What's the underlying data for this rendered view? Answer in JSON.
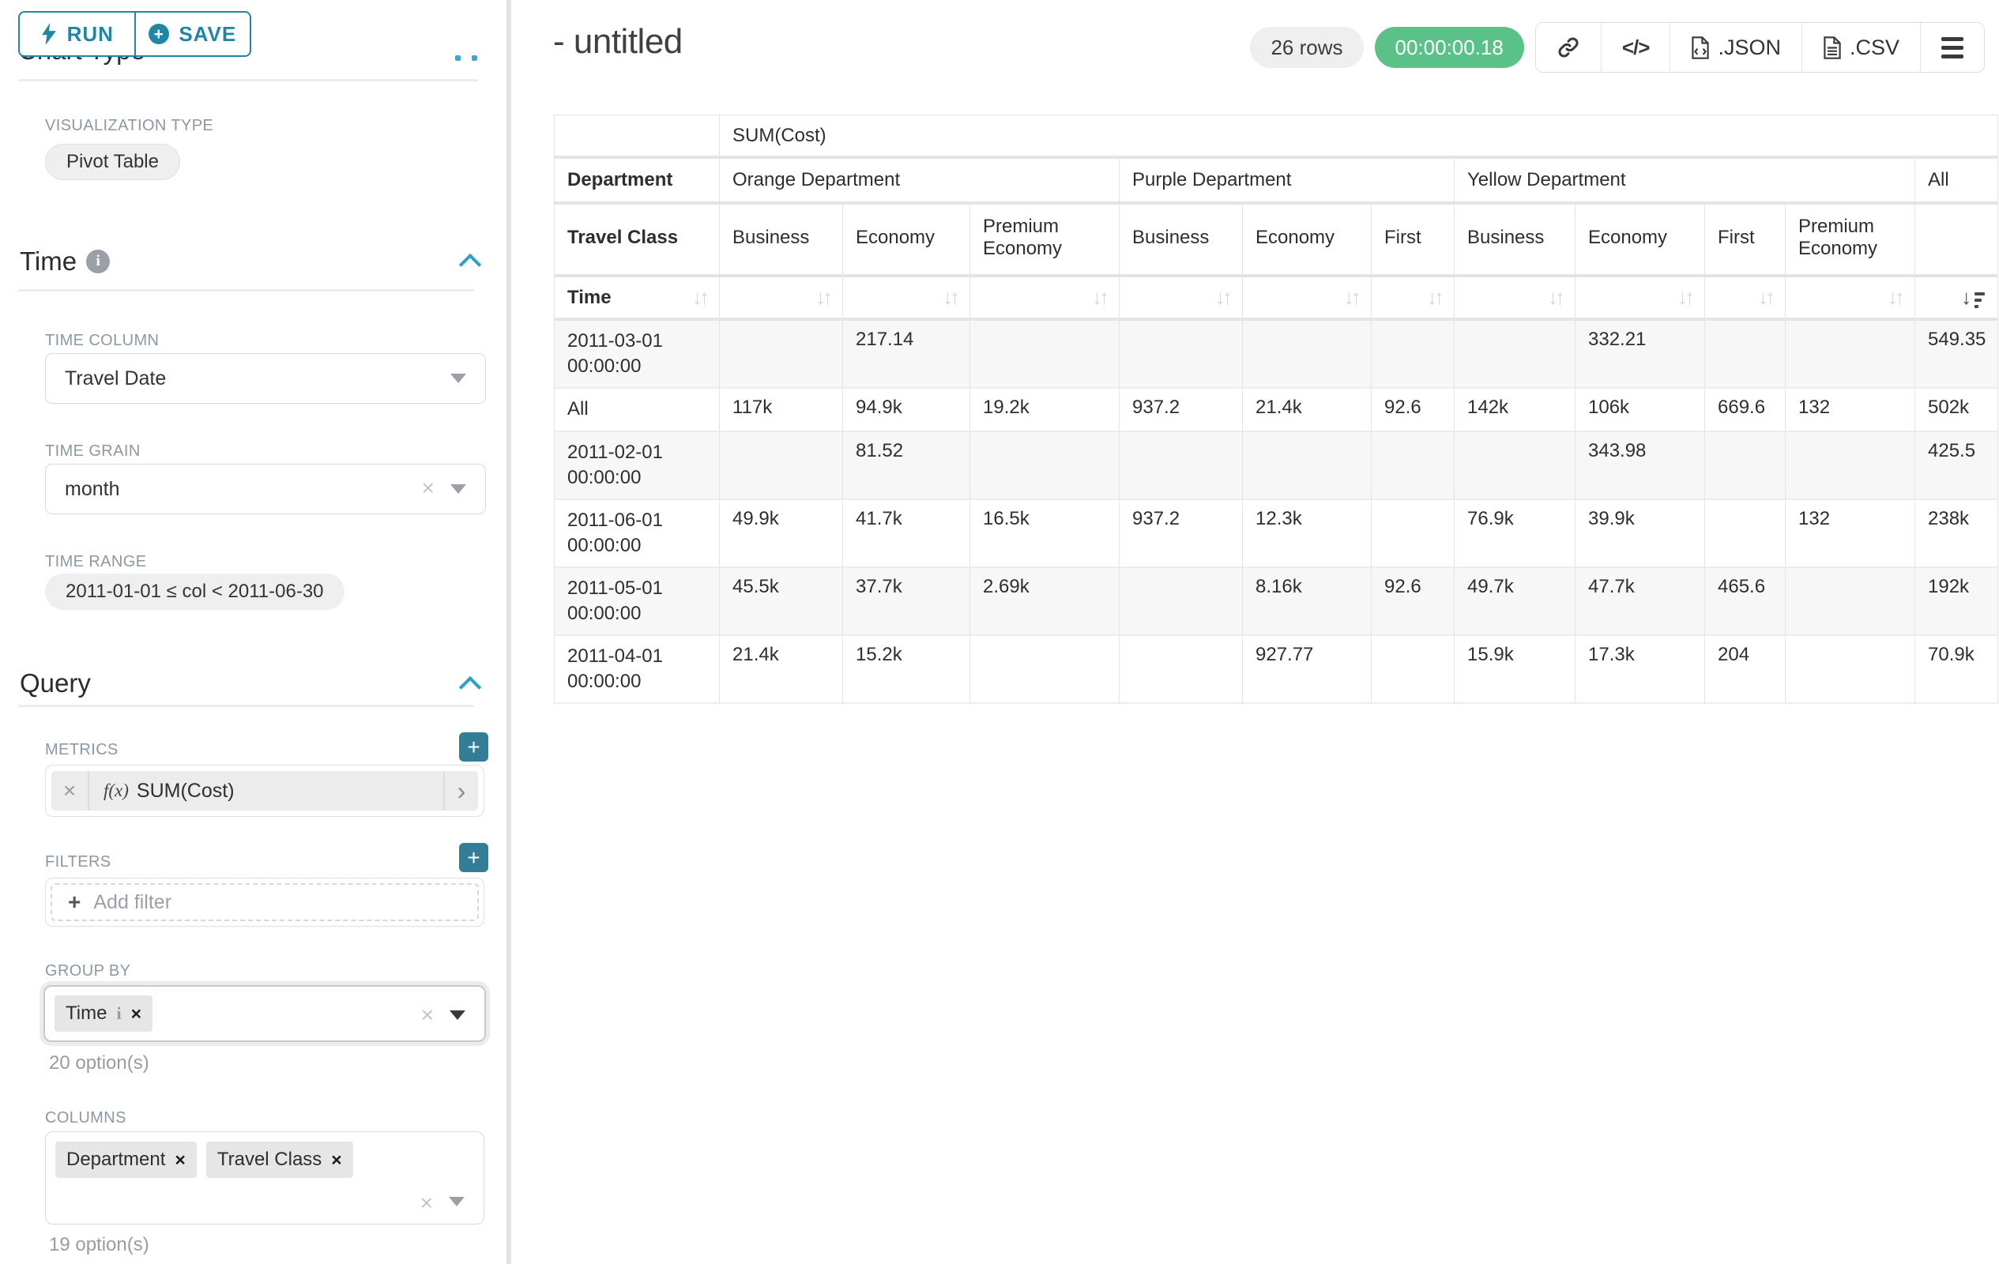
{
  "colors": {
    "accent": "#20a7c9",
    "success": "#5ac189"
  },
  "toolbar": {
    "run_label": "RUN",
    "save_label": "SAVE"
  },
  "panel": {
    "scrolled_heading": "Chart Type",
    "viz_type_label": "VISUALIZATION TYPE",
    "viz_type_value": "Pivot Table",
    "time_section": "Time",
    "time_column_label": "TIME COLUMN",
    "time_column_value": "Travel Date",
    "time_grain_label": "TIME GRAIN",
    "time_grain_value": "month",
    "time_range_label": "TIME RANGE",
    "time_range_value": "2011-01-01 ≤ col < 2011-06-30",
    "query_section": "Query",
    "metrics_label": "METRICS",
    "metric_fx": "f(x)",
    "metric_value": "SUM(Cost)",
    "filters_label": "FILTERS",
    "add_filter_label": "Add filter",
    "group_by_label": "GROUP BY",
    "group_by_chip": "Time",
    "group_by_options": "20 option(s)",
    "columns_label": "COLUMNS",
    "columns_chips": [
      "Department",
      "Travel Class"
    ],
    "columns_options": "19 option(s)"
  },
  "header": {
    "title": "- untitled",
    "row_count": "26 rows",
    "duration": "00:00:00.18",
    "export_json_label": ".JSON",
    "export_csv_label": ".CSV"
  },
  "table": {
    "metric_label": "SUM(Cost)",
    "dept_row": [
      {
        "label": "Department",
        "span": 1,
        "bold": true
      },
      {
        "label": "Orange Department",
        "span": 3
      },
      {
        "label": "Purple Department",
        "span": 3
      },
      {
        "label": "Yellow Department",
        "span": 4
      },
      {
        "label": "All",
        "span": 1
      }
    ],
    "class_row": [
      "Travel Class",
      "Business",
      "Economy",
      "Premium Economy",
      "Business",
      "Economy",
      "First",
      "Business",
      "Economy",
      "First",
      "Premium Economy",
      ""
    ],
    "time_label": "Time",
    "rows": [
      {
        "label": "2011-03-01 00:00:00",
        "cells": [
          "",
          "217.14",
          "",
          "",
          "",
          "",
          "",
          "332.21",
          "",
          "",
          "549.35"
        ]
      },
      {
        "label": "All",
        "cells": [
          "117k",
          "94.9k",
          "19.2k",
          "937.2",
          "21.4k",
          "92.6",
          "142k",
          "106k",
          "669.6",
          "132",
          "502k"
        ]
      },
      {
        "label": "2011-02-01 00:00:00",
        "cells": [
          "",
          "81.52",
          "",
          "",
          "",
          "",
          "",
          "343.98",
          "",
          "",
          "425.5"
        ]
      },
      {
        "label": "2011-06-01 00:00:00",
        "cells": [
          "49.9k",
          "41.7k",
          "16.5k",
          "937.2",
          "12.3k",
          "",
          "76.9k",
          "39.9k",
          "",
          "132",
          "238k"
        ]
      },
      {
        "label": "2011-05-01 00:00:00",
        "cells": [
          "45.5k",
          "37.7k",
          "2.69k",
          "",
          "8.16k",
          "92.6",
          "49.7k",
          "47.7k",
          "465.6",
          "",
          "192k"
        ]
      },
      {
        "label": "2011-04-01 00:00:00",
        "cells": [
          "21.4k",
          "15.2k",
          "",
          "",
          "927.77",
          "",
          "15.9k",
          "17.3k",
          "204",
          "",
          "70.9k"
        ]
      }
    ]
  }
}
